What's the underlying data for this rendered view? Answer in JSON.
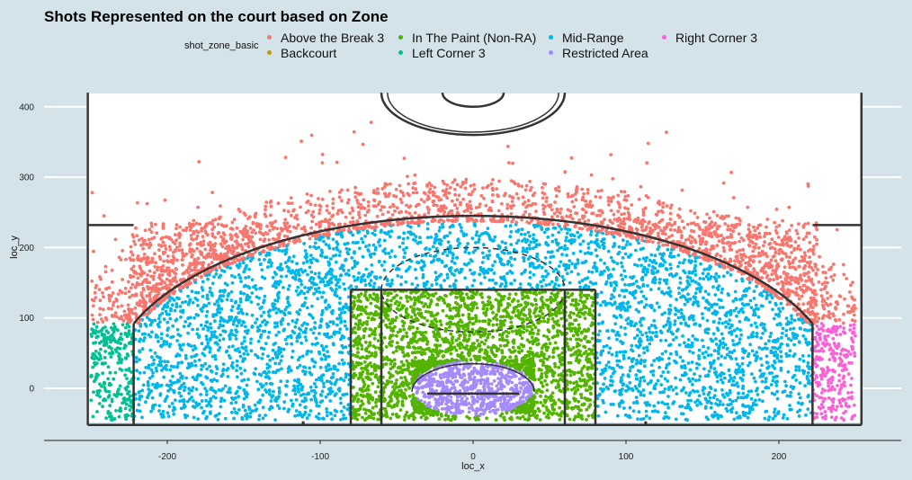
{
  "chart_data": {
    "type": "scatter",
    "title": "Shots Represented on the court based on Zone",
    "xlabel": "loc_x",
    "ylabel": "loc_y",
    "xlim": [
      -275,
      280
    ],
    "ylim": [
      -75,
      420
    ],
    "x_ticks": [
      -200,
      -100,
      0,
      100,
      200
    ],
    "y_ticks": [
      0,
      100,
      200,
      300,
      400
    ],
    "grid": "horizontal major lines",
    "legend_title": "shot_zone_basic",
    "legend_position": "top",
    "background": "#d4e2ea",
    "series": [
      {
        "name": "Above the Break 3",
        "color": "#f8766d",
        "region": "outside 3pt arc above corners",
        "approx_points": 2600
      },
      {
        "name": "Backcourt",
        "color": "#c49a00",
        "region": "beyond half court",
        "approx_points": 0
      },
      {
        "name": "In The Paint (Non-RA)",
        "color": "#53b400",
        "region": "x -80..80, y -45..140 excluding restricted area",
        "approx_points": 2400
      },
      {
        "name": "Left Corner 3",
        "color": "#00c094",
        "region": "x -250..-222, y -45..95",
        "approx_points": 260
      },
      {
        "name": "Mid-Range",
        "color": "#00b6eb",
        "region": "inside 3pt arc outside paint",
        "approx_points": 3400
      },
      {
        "name": "Restricted Area",
        "color": "#a58aff",
        "region": "radius 40 around hoop",
        "approx_points": 700
      },
      {
        "name": "Right Corner 3",
        "color": "#fb61d7",
        "region": "x 222..250, y -45..95",
        "approx_points": 260
      }
    ]
  }
}
